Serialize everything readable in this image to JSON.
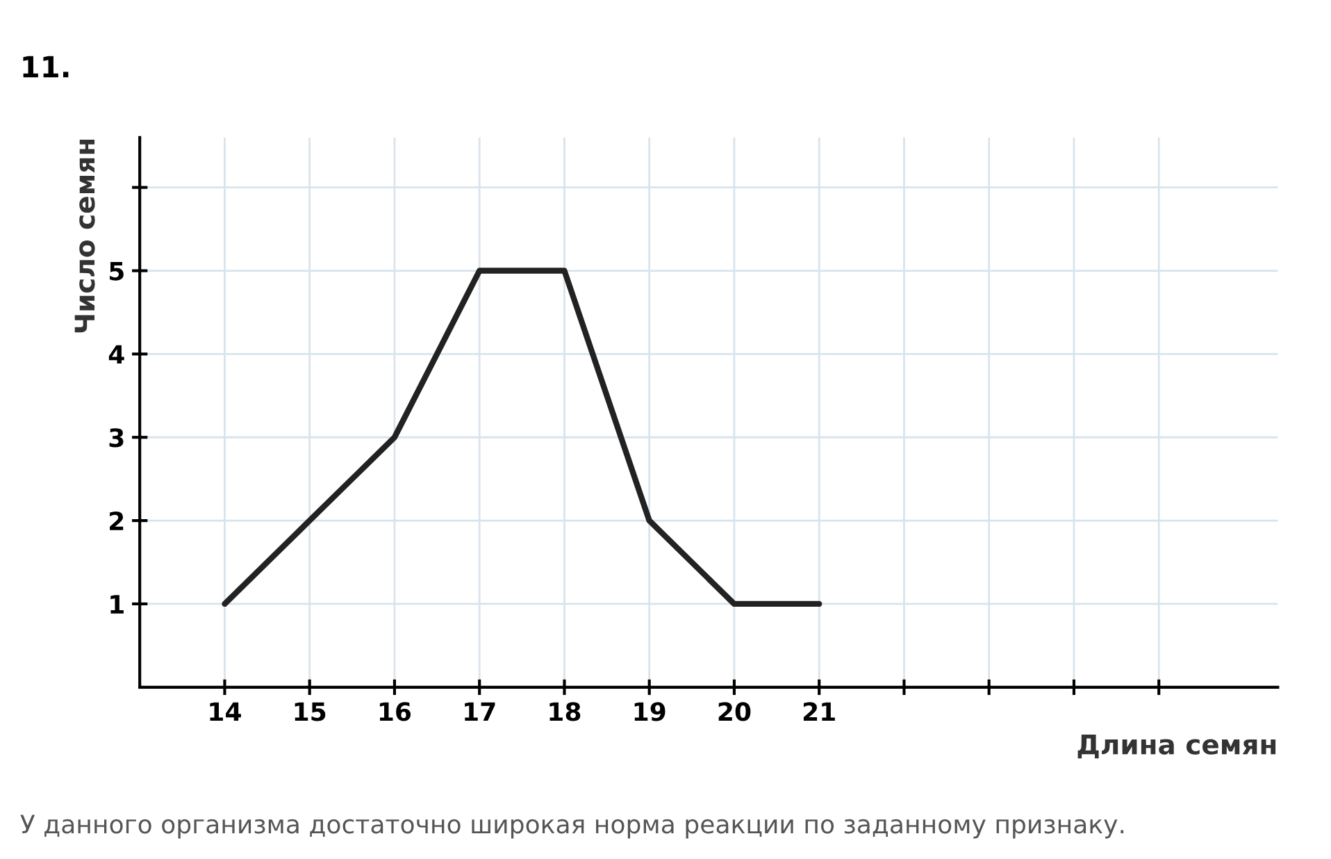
{
  "chart_data": {
    "type": "line",
    "xlabel": "Длина семян",
    "ylabel": "Число семян",
    "x": [
      14,
      15,
      16,
      17,
      18,
      19,
      20,
      21
    ],
    "series": [
      {
        "color": "#222222",
        "values": [
          1,
          2,
          3,
          5,
          5,
          2,
          1,
          1
        ]
      }
    ],
    "xlim": [
      13,
      26.4
    ],
    "ylim": [
      0,
      6.6
    ],
    "xticks": [
      14,
      15,
      16,
      17,
      18,
      19,
      20,
      21,
      {
        "value": 22,
        "label": null
      },
      {
        "value": 23,
        "label": null
      },
      {
        "value": 24,
        "label": null
      },
      {
        "value": 25,
        "label": null
      }
    ],
    "yticks": [
      1,
      2,
      3,
      4,
      5,
      {
        "value": 6,
        "label": null
      }
    ],
    "grid": true,
    "marker": "none",
    "line_style": "solid",
    "annotations": [
      "11.",
      "У данного организма достаточно широкая норма реакции по заданному признаку."
    ]
  }
}
